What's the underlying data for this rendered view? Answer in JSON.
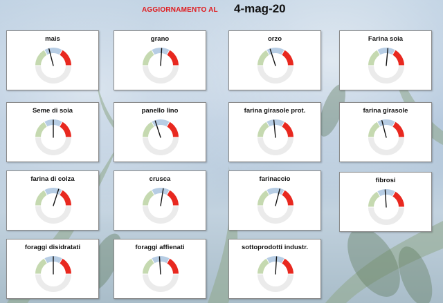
{
  "header": {
    "label": "AGGIORNAMENTO AL",
    "date": "4-mag-20"
  },
  "colors": {
    "green": "#c5d9b0",
    "blue": "#b7cde4",
    "red": "#e8281f",
    "ring_bottom": "#ebebeb",
    "needle": "#111111",
    "header_label": "#e0191c"
  },
  "gauges": [
    {
      "id": "mais",
      "label": "mais",
      "needle_fraction": 0.42
    },
    {
      "id": "grano",
      "label": "grano",
      "needle_fraction": 0.52
    },
    {
      "id": "orzo",
      "label": "orzo",
      "needle_fraction": 0.4
    },
    {
      "id": "farina-soia",
      "label": "Farina soia",
      "needle_fraction": 0.53
    },
    {
      "id": "seme-di-soia",
      "label": "Seme di soia",
      "needle_fraction": 0.5
    },
    {
      "id": "panello-lino",
      "label": "panello lino",
      "needle_fraction": 0.4
    },
    {
      "id": "farina-girasole-prot",
      "label": "farina girasole prot.",
      "needle_fraction": 0.47
    },
    {
      "id": "farina-girasole",
      "label": "farina girasole",
      "needle_fraction": 0.42
    },
    {
      "id": "farina-di-colza",
      "label": "farina di colza",
      "needle_fraction": 0.6
    },
    {
      "id": "crusca",
      "label": "crusca",
      "needle_fraction": 0.55
    },
    {
      "id": "farinaccio",
      "label": "farinaccio",
      "needle_fraction": 0.58
    },
    {
      "id": "fibrosi",
      "label": "fibrosi",
      "needle_fraction": 0.48
    },
    {
      "id": "foraggi-disidratati",
      "label": "foraggi disidratati",
      "needle_fraction": 0.5
    },
    {
      "id": "foraggi-affienati",
      "label": "foraggi affienati",
      "needle_fraction": 0.48
    },
    {
      "id": "sottoprodotti-industr",
      "label": "sottoprodotti industr.",
      "needle_fraction": 0.52
    }
  ]
}
